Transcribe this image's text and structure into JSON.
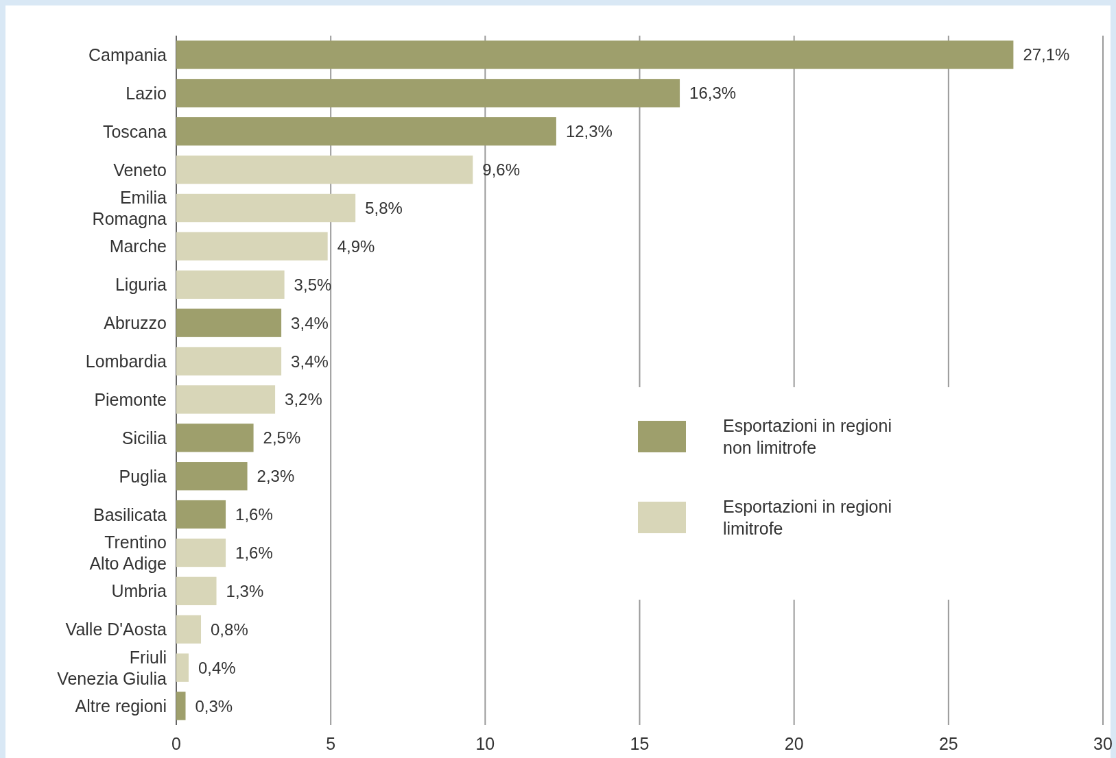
{
  "chart_data": {
    "type": "bar",
    "orientation": "horizontal",
    "categories": [
      "Campania",
      "Lazio",
      "Toscana",
      "Veneto",
      "Emilia Romagna",
      "Marche",
      "Liguria",
      "Abruzzo",
      "Lombardia",
      "Piemonte",
      "Sicilia",
      "Puglia",
      "Basilicata",
      "Trentino Alto Adige",
      "Umbria",
      "Valle D'Aosta",
      "Friuli Venezia Giulia",
      "Altre regioni"
    ],
    "series": [
      {
        "name": "Esportazioni in regioni non limitrofe",
        "color": "#9e9f6c",
        "values": [
          27.1,
          16.3,
          12.3,
          null,
          null,
          null,
          null,
          3.4,
          null,
          null,
          2.5,
          2.3,
          1.6,
          null,
          null,
          null,
          null,
          0.3
        ],
        "value_labels": [
          "27,1%",
          "16,3%",
          "12,3%",
          null,
          null,
          null,
          null,
          "3,4%",
          null,
          null,
          "2,5%",
          "2,3%",
          "1,6%",
          null,
          null,
          null,
          null,
          "0,3%"
        ]
      },
      {
        "name": "Esportazioni in regioni limitrofe",
        "color": "#d8d6b8",
        "values": [
          null,
          null,
          null,
          9.6,
          5.8,
          4.9,
          3.5,
          null,
          3.4,
          3.2,
          null,
          null,
          null,
          1.6,
          1.3,
          0.8,
          0.4,
          null
        ],
        "value_labels": [
          null,
          null,
          null,
          "9,6%",
          "5,8%",
          "4,9%",
          "3,5%",
          null,
          "3,4%",
          "3,2%",
          null,
          null,
          null,
          "1,6%",
          "1,3%",
          "0,8%",
          "0,4%",
          null
        ]
      }
    ],
    "xlim": [
      0,
      30
    ],
    "xticks": [
      0,
      5,
      10,
      15,
      20,
      25,
      30
    ],
    "grid": "x",
    "legend": "right"
  }
}
